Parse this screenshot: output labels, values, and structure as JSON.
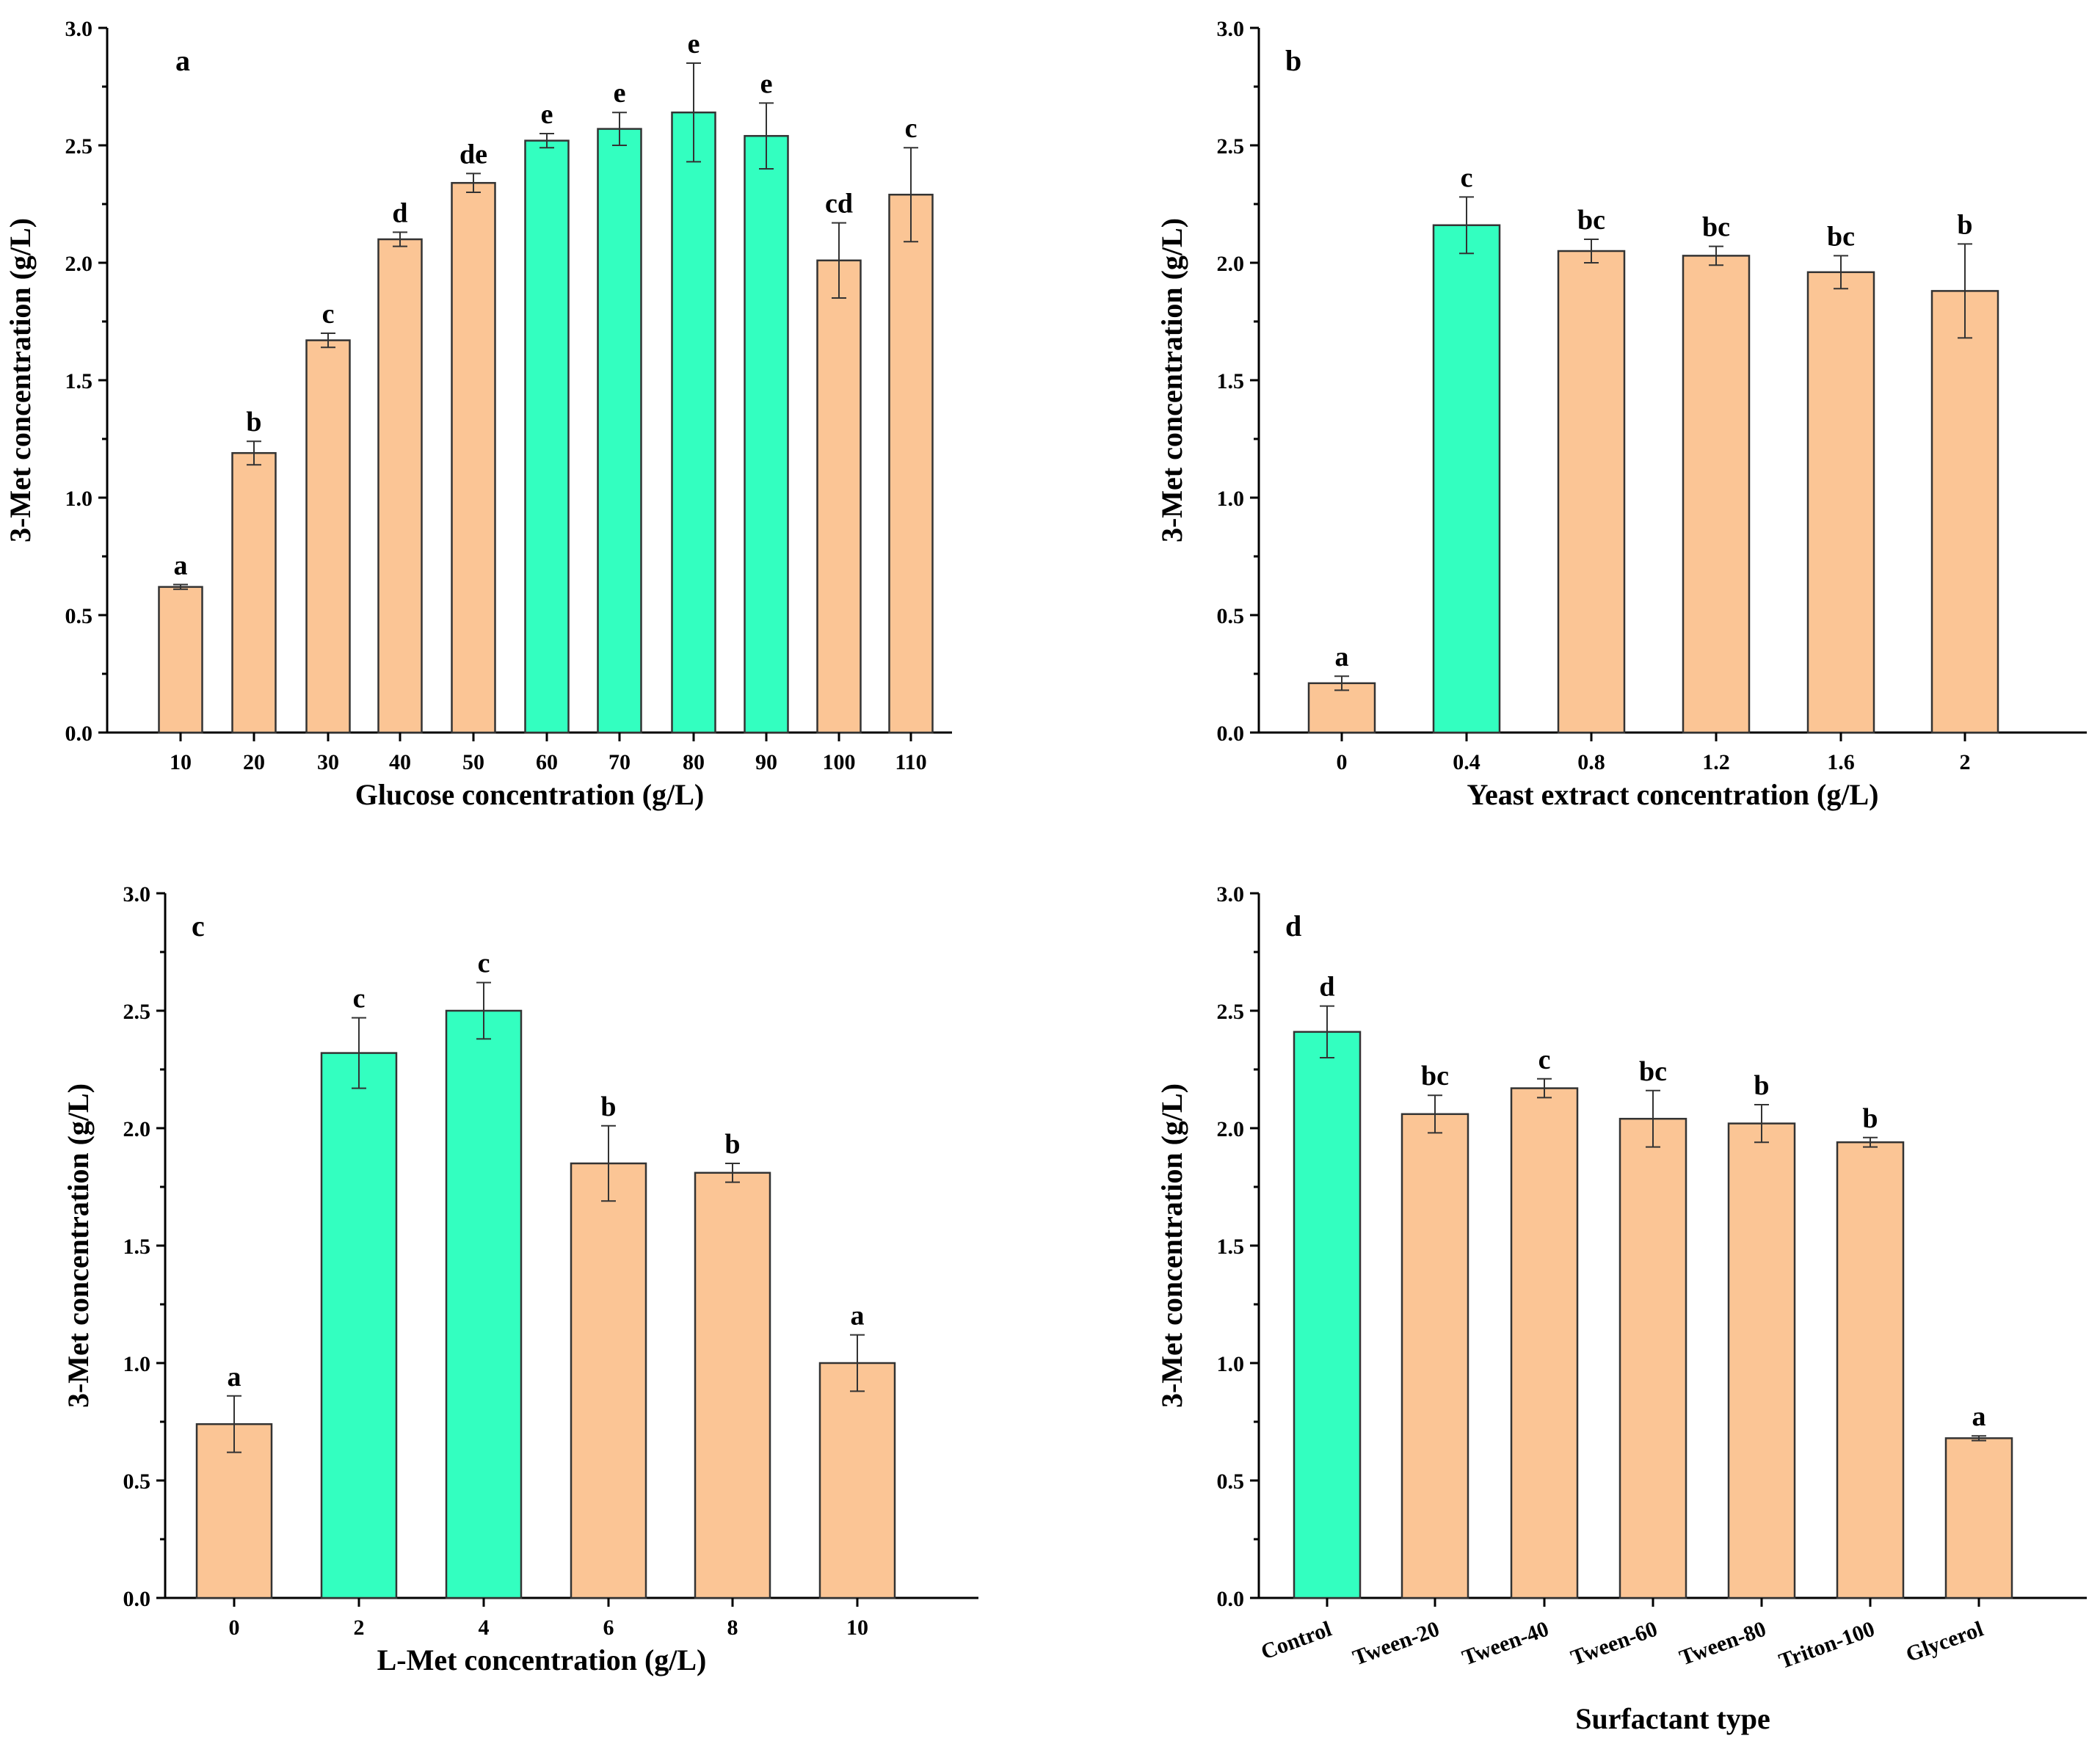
{
  "colors": {
    "highlight": "#33ffc0",
    "normal": "#fbc595",
    "stroke": "#333333"
  },
  "chart_data": [
    {
      "type": "bar",
      "panel_label": "a",
      "title": "",
      "xlabel": "Glucose concentration (g/L)",
      "ylabel": "3-Met concentration (g/L)",
      "ylim": [
        0,
        3.0
      ],
      "yticks": [
        "0.0",
        "0.5",
        "1.0",
        "1.5",
        "2.0",
        "2.5",
        "3.0"
      ],
      "categories": [
        "10",
        "20",
        "30",
        "40",
        "50",
        "60",
        "70",
        "80",
        "90",
        "100",
        "110"
      ],
      "values": [
        0.62,
        1.19,
        1.67,
        2.1,
        2.34,
        2.52,
        2.57,
        2.64,
        2.54,
        2.01,
        2.29
      ],
      "errors": [
        0.01,
        0.05,
        0.03,
        0.03,
        0.04,
        0.03,
        0.07,
        0.21,
        0.14,
        0.16,
        0.2
      ],
      "significance": [
        "a",
        "b",
        "c",
        "d",
        "de",
        "e",
        "e",
        "e",
        "e",
        "cd",
        "c"
      ],
      "highlight": [
        false,
        false,
        false,
        false,
        false,
        true,
        true,
        true,
        true,
        false,
        false
      ]
    },
    {
      "type": "bar",
      "panel_label": "b",
      "title": "",
      "xlabel": "Yeast extract concentration (g/L)",
      "ylabel": "3-Met concentration (g/L)",
      "ylim": [
        0,
        3.0
      ],
      "yticks": [
        "0.0",
        "0.5",
        "1.0",
        "1.5",
        "2.0",
        "2.5",
        "3.0"
      ],
      "categories": [
        "0",
        "0.4",
        "0.8",
        "1.2",
        "1.6",
        "2"
      ],
      "values": [
        0.21,
        2.16,
        2.05,
        2.03,
        1.96,
        1.88
      ],
      "errors": [
        0.03,
        0.12,
        0.05,
        0.04,
        0.07,
        0.2
      ],
      "significance": [
        "a",
        "c",
        "bc",
        "bc",
        "bc",
        "b"
      ],
      "highlight": [
        false,
        true,
        false,
        false,
        false,
        false
      ]
    },
    {
      "type": "bar",
      "panel_label": "c",
      "title": "",
      "xlabel": "L-Met concentration (g/L)",
      "ylabel": "3-Met concentration (g/L)",
      "ylim": [
        0,
        3.0
      ],
      "yticks": [
        "0.0",
        "0.5",
        "1.0",
        "1.5",
        "2.0",
        "2.5",
        "3.0"
      ],
      "categories": [
        "0",
        "2",
        "4",
        "6",
        "8",
        "10"
      ],
      "values": [
        0.74,
        2.32,
        2.5,
        1.85,
        1.81,
        1.0
      ],
      "errors": [
        0.12,
        0.15,
        0.12,
        0.16,
        0.04,
        0.12
      ],
      "significance": [
        "a",
        "c",
        "c",
        "b",
        "b",
        "a"
      ],
      "highlight": [
        false,
        true,
        true,
        false,
        false,
        false
      ]
    },
    {
      "type": "bar",
      "panel_label": "d",
      "title": "",
      "xlabel": "Surfactant type",
      "ylabel": "3-Met concentration (g/L)",
      "ylim": [
        0,
        3.0
      ],
      "yticks": [
        "0.0",
        "0.5",
        "1.0",
        "1.5",
        "2.0",
        "2.5",
        "3.0"
      ],
      "categories": [
        "Control",
        "Tween-20",
        "Tween-40",
        "Tween-60",
        "Tween-80",
        "Triton-100",
        "Glycerol"
      ],
      "values": [
        2.41,
        2.06,
        2.17,
        2.04,
        2.02,
        1.94,
        0.68
      ],
      "errors": [
        0.11,
        0.08,
        0.04,
        0.12,
        0.08,
        0.02,
        0.01
      ],
      "significance": [
        "d",
        "bc",
        "c",
        "bc",
        "b",
        "b",
        "a"
      ],
      "highlight": [
        true,
        false,
        false,
        false,
        false,
        false,
        false
      ],
      "rotated_ticks": true
    }
  ]
}
